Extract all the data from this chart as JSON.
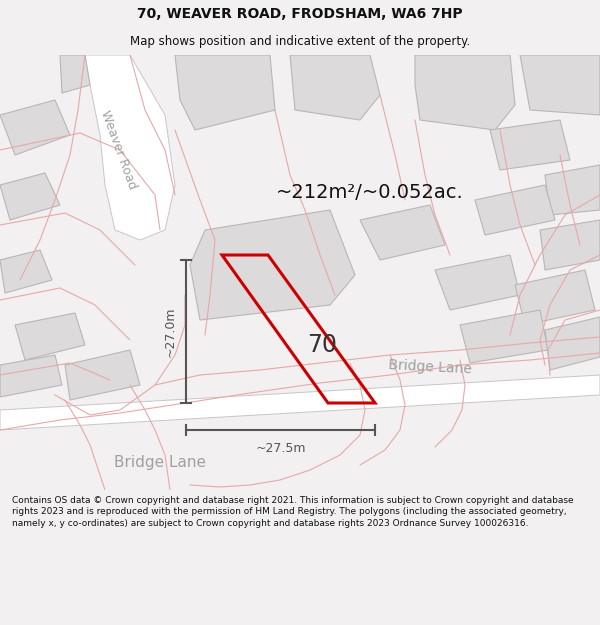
{
  "title": "70, WEAVER ROAD, FRODSHAM, WA6 7HP",
  "subtitle": "Map shows position and indicative extent of the property.",
  "footer": "Contains OS data © Crown copyright and database right 2021. This information is subject to Crown copyright and database rights 2023 and is reproduced with the permission of HM Land Registry. The polygons (including the associated geometry, namely x, y co-ordinates) are subject to Crown copyright and database rights 2023 Ordnance Survey 100026316.",
  "area_text": "~212m²/~0.052ac.",
  "label_70": "70",
  "dim_v": "~27.0m",
  "dim_h": "~27.5m",
  "road_label_weaver": "Weaver Road",
  "road_label_bridge1": "Bridge Lane",
  "road_label_bridge2": "Bridge Lane",
  "bg_color": "#f2f0f0",
  "map_bg": "#f2f0f0",
  "building_fill": "#dcdada",
  "building_edge": "#b8b6b6",
  "road_fill": "#ffffff",
  "road_edge": "#c8c6c6",
  "pink_line": "#e8a8a8",
  "red_line_color": "#cc0000",
  "dim_line_color": "#555555",
  "road_text_color": "#a0a0a0",
  "title_color": "#111111",
  "footer_color": "#111111"
}
